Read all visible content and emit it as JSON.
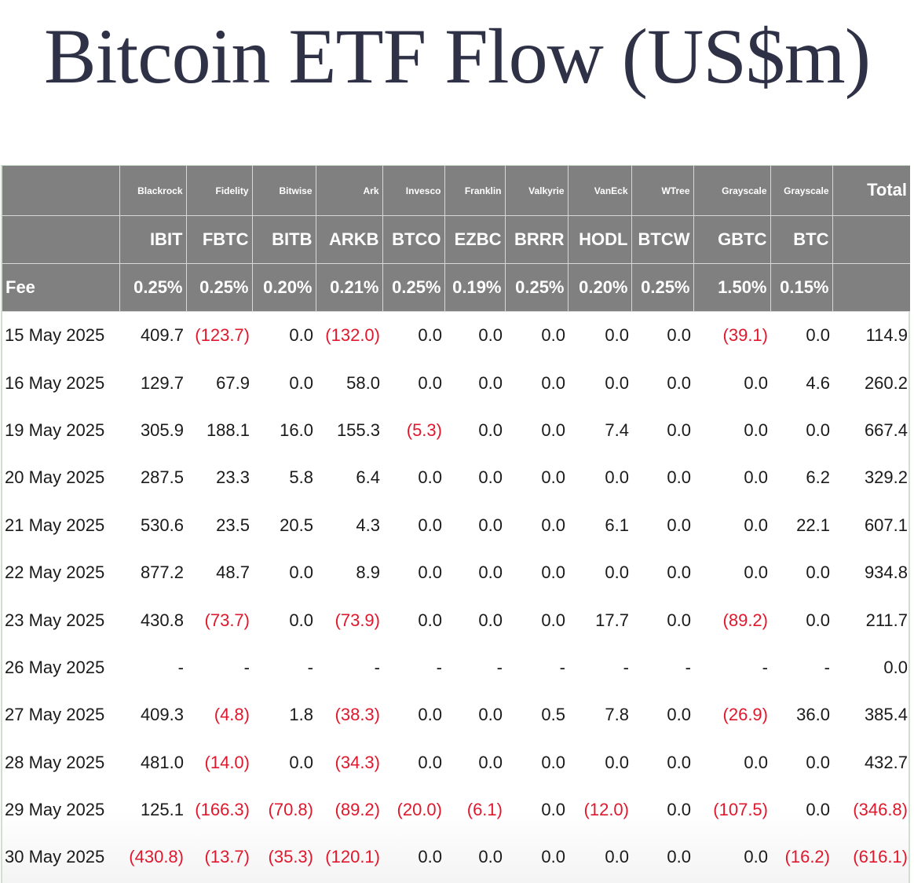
{
  "title": "Bitcoin ETF Flow (US$m)",
  "colors": {
    "header_bg": "#808080",
    "header_text": "#ffffff",
    "negative": "#e0182d",
    "text": "#1a1a1a",
    "title": "#2f3147"
  },
  "table": {
    "issuers": [
      "Blackrock",
      "Fidelity",
      "Bitwise",
      "Ark",
      "Invesco",
      "Franklin",
      "Valkyrie",
      "VanEck",
      "WTree",
      "Grayscale",
      "Grayscale"
    ],
    "total_label": "Total",
    "tickers": [
      "IBIT",
      "FBTC",
      "BITB",
      "ARKB",
      "BTCO",
      "EZBC",
      "BRRR",
      "HODL",
      "BTCW",
      "GBTC",
      "BTC"
    ],
    "fee_label": "Fee",
    "fees": [
      "0.25%",
      "0.25%",
      "0.20%",
      "0.21%",
      "0.25%",
      "0.19%",
      "0.25%",
      "0.20%",
      "0.25%",
      "1.50%",
      "0.15%"
    ],
    "rows": [
      {
        "date": "15 May 2025",
        "values": [
          "409.7",
          "(123.7)",
          "0.0",
          "(132.0)",
          "0.0",
          "0.0",
          "0.0",
          "0.0",
          "0.0",
          "(39.1)",
          "0.0"
        ],
        "total": "114.9"
      },
      {
        "date": "16 May 2025",
        "values": [
          "129.7",
          "67.9",
          "0.0",
          "58.0",
          "0.0",
          "0.0",
          "0.0",
          "0.0",
          "0.0",
          "0.0",
          "4.6"
        ],
        "total": "260.2"
      },
      {
        "date": "19 May 2025",
        "values": [
          "305.9",
          "188.1",
          "16.0",
          "155.3",
          "(5.3)",
          "0.0",
          "0.0",
          "7.4",
          "0.0",
          "0.0",
          "0.0"
        ],
        "total": "667.4"
      },
      {
        "date": "20 May 2025",
        "values": [
          "287.5",
          "23.3",
          "5.8",
          "6.4",
          "0.0",
          "0.0",
          "0.0",
          "0.0",
          "0.0",
          "0.0",
          "6.2"
        ],
        "total": "329.2"
      },
      {
        "date": "21 May 2025",
        "values": [
          "530.6",
          "23.5",
          "20.5",
          "4.3",
          "0.0",
          "0.0",
          "0.0",
          "6.1",
          "0.0",
          "0.0",
          "22.1"
        ],
        "total": "607.1"
      },
      {
        "date": "22 May 2025",
        "values": [
          "877.2",
          "48.7",
          "0.0",
          "8.9",
          "0.0",
          "0.0",
          "0.0",
          "0.0",
          "0.0",
          "0.0",
          "0.0"
        ],
        "total": "934.8"
      },
      {
        "date": "23 May 2025",
        "values": [
          "430.8",
          "(73.7)",
          "0.0",
          "(73.9)",
          "0.0",
          "0.0",
          "0.0",
          "17.7",
          "0.0",
          "(89.2)",
          "0.0"
        ],
        "total": "211.7"
      },
      {
        "date": "26 May 2025",
        "values": [
          "-",
          "-",
          "-",
          "-",
          "-",
          "-",
          "-",
          "-",
          "-",
          "-",
          "-"
        ],
        "total": "0.0"
      },
      {
        "date": "27 May 2025",
        "values": [
          "409.3",
          "(4.8)",
          "1.8",
          "(38.3)",
          "0.0",
          "0.0",
          "0.5",
          "7.8",
          "0.0",
          "(26.9)",
          "36.0"
        ],
        "total": "385.4"
      },
      {
        "date": "28 May 2025",
        "values": [
          "481.0",
          "(14.0)",
          "0.0",
          "(34.3)",
          "0.0",
          "0.0",
          "0.0",
          "0.0",
          "0.0",
          "0.0",
          "0.0"
        ],
        "total": "432.7"
      },
      {
        "date": "29 May 2025",
        "values": [
          "125.1",
          "(166.3)",
          "(70.8)",
          "(89.2)",
          "(20.0)",
          "(6.1)",
          "0.0",
          "(12.0)",
          "0.0",
          "(107.5)",
          "0.0"
        ],
        "total": "(346.8)"
      },
      {
        "date": "30 May 2025",
        "values": [
          "(430.8)",
          "(13.7)",
          "(35.3)",
          "(120.1)",
          "0.0",
          "0.0",
          "0.0",
          "0.0",
          "0.0",
          "0.0",
          "(16.2)"
        ],
        "total": "(616.1)"
      }
    ]
  }
}
